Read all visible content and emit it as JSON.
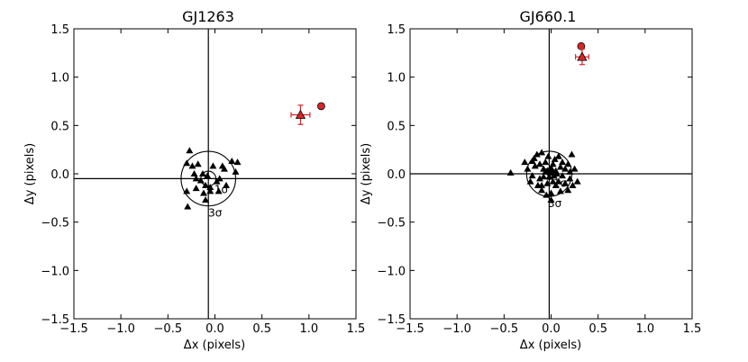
{
  "chart_data": [
    {
      "type": "scatter",
      "title": "GJ1263",
      "xlabel": "Δx (pixels)",
      "ylabel": "Δy (pixels)",
      "xlim": [
        -1.5,
        1.5
      ],
      "ylim": [
        -1.5,
        1.5
      ],
      "xticks": [
        "−1.5",
        "−1.0",
        "−0.5",
        "0.0",
        "0.5",
        "1.0",
        "1.5"
      ],
      "yticks": [
        "1.5",
        "1.0",
        "0.5",
        "0.0",
        "−0.5",
        "−1.0",
        "−1.5"
      ],
      "xtick_values": [
        -1.5,
        -1.0,
        -0.5,
        0.0,
        0.5,
        1.0,
        1.5
      ],
      "ytick_values": [
        1.5,
        1.0,
        0.5,
        0.0,
        -0.5,
        -1.0,
        -1.5
      ],
      "ref_lines": {
        "x": -0.07,
        "y": -0.05
      },
      "circles": [
        {
          "label": "1σ",
          "radius": 0.08
        },
        {
          "label": "3σ",
          "radius": 0.29
        }
      ],
      "triangles": [
        [
          -0.27,
          0.24
        ],
        [
          -0.3,
          0.11
        ],
        [
          -0.24,
          0.08
        ],
        [
          -0.18,
          0.1
        ],
        [
          -0.02,
          0.08
        ],
        [
          0.08,
          0.08
        ],
        [
          0.18,
          0.13
        ],
        [
          0.24,
          0.12
        ],
        [
          -0.22,
          0.0
        ],
        [
          -0.13,
          0.0
        ],
        [
          0.1,
          0.05
        ],
        [
          0.22,
          0.02
        ],
        [
          -0.2,
          -0.05
        ],
        [
          -0.15,
          -0.07
        ],
        [
          -0.1,
          -0.12
        ],
        [
          -0.05,
          -0.14
        ],
        [
          0.02,
          -0.08
        ],
        [
          0.05,
          -0.05
        ],
        [
          0.12,
          -0.12
        ],
        [
          -0.12,
          -0.2
        ],
        [
          -0.05,
          -0.18
        ],
        [
          0.04,
          -0.18
        ],
        [
          -0.2,
          -0.15
        ],
        [
          -0.29,
          -0.34
        ],
        [
          -0.1,
          -0.27
        ],
        [
          -0.3,
          -0.18
        ],
        [
          -0.08,
          -0.02
        ]
      ],
      "companion_predicted": {
        "x": 1.13,
        "y": 0.7,
        "color": "#d62728"
      },
      "companion_measured": {
        "x": 0.91,
        "y": 0.61,
        "xerr": 0.1,
        "yerr": 0.1,
        "color": "#d62728"
      }
    },
    {
      "type": "scatter",
      "title": "GJ660.1",
      "xlabel": "Δx (pixels)",
      "ylabel": "Δy (pixels)",
      "xlim": [
        -1.5,
        1.5
      ],
      "ylim": [
        -1.5,
        1.5
      ],
      "xticks": [
        "−1.5",
        "−1.0",
        "−0.5",
        "0.0",
        "0.5",
        "1.0",
        "1.5"
      ],
      "yticks": [
        "1.5",
        "1.0",
        "0.5",
        "0.0",
        "−0.5",
        "−1.0",
        "−1.5"
      ],
      "xtick_values": [
        -1.5,
        -1.0,
        -0.5,
        0.0,
        0.5,
        1.0,
        1.5
      ],
      "ytick_values": [
        1.5,
        1.0,
        0.5,
        0.0,
        -0.5,
        -1.0,
        -1.5
      ],
      "ref_lines": {
        "x": -0.02,
        "y": 0.0
      },
      "circles": [
        {
          "label": "1σ",
          "radius": 0.06
        },
        {
          "label": "3σ",
          "radius": 0.24
        }
      ],
      "triangles": [
        [
          -0.43,
          0.01
        ],
        [
          -0.28,
          0.12
        ],
        [
          -0.25,
          0.05
        ],
        [
          -0.2,
          0.13
        ],
        [
          -0.17,
          0.08
        ],
        [
          -0.15,
          0.2
        ],
        [
          -0.12,
          0.1
        ],
        [
          -0.1,
          0.22
        ],
        [
          -0.08,
          0.05
        ],
        [
          -0.06,
          0.12
        ],
        [
          -0.04,
          0.03
        ],
        [
          -0.03,
          0.18
        ],
        [
          0.0,
          0.06
        ],
        [
          0.02,
          0.1
        ],
        [
          0.04,
          0.15
        ],
        [
          0.06,
          0.0
        ],
        [
          0.08,
          0.18
        ],
        [
          0.1,
          0.07
        ],
        [
          0.12,
          -0.02
        ],
        [
          0.15,
          0.05
        ],
        [
          0.18,
          0.1
        ],
        [
          0.2,
          0.02
        ],
        [
          0.22,
          0.2
        ],
        [
          0.25,
          0.05
        ],
        [
          0.23,
          -0.12
        ],
        [
          0.18,
          -0.17
        ],
        [
          0.1,
          -0.18
        ],
        [
          0.05,
          -0.12
        ],
        [
          0.02,
          -0.08
        ],
        [
          -0.04,
          -0.1
        ],
        [
          -0.08,
          -0.03
        ],
        [
          -0.12,
          -0.05
        ],
        [
          -0.14,
          -0.12
        ],
        [
          -0.2,
          -0.02
        ],
        [
          -0.22,
          -0.08
        ],
        [
          -0.1,
          -0.17
        ],
        [
          -0.05,
          -0.22
        ],
        [
          0.0,
          -0.2
        ],
        [
          0.08,
          -0.08
        ],
        [
          0.15,
          -0.1
        ],
        [
          0.28,
          -0.08
        ],
        [
          0.2,
          -0.05
        ],
        [
          -0.01,
          0.01
        ],
        [
          0.03,
          -0.02
        ],
        [
          -0.02,
          -0.03
        ],
        [
          0.01,
          0.02
        ],
        [
          -0.06,
          0.02
        ],
        [
          0.05,
          0.03
        ],
        [
          -0.18,
          0.16
        ],
        [
          0.12,
          0.12
        ],
        [
          0.0,
          -0.27
        ],
        [
          -0.1,
          -0.12
        ]
      ],
      "companion_predicted": {
        "x": 0.32,
        "y": 1.32,
        "color": "#d62728"
      },
      "companion_measured": {
        "x": 0.33,
        "y": 1.21,
        "xerr": 0.07,
        "yerr": 0.08,
        "color": "#d62728"
      }
    }
  ]
}
